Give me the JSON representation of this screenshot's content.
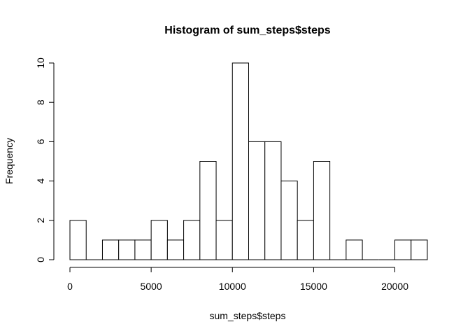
{
  "chart_data": {
    "type": "bar",
    "title": "Histogram of sum_steps$steps",
    "xlabel": "sum_steps$steps",
    "ylabel": "Frequency",
    "xlim": [
      0,
      22000
    ],
    "ylim": [
      0,
      10
    ],
    "bin_width": 1000,
    "bins": [
      {
        "start": 0,
        "end": 1000,
        "count": 2
      },
      {
        "start": 1000,
        "end": 2000,
        "count": 0
      },
      {
        "start": 2000,
        "end": 3000,
        "count": 1
      },
      {
        "start": 3000,
        "end": 4000,
        "count": 1
      },
      {
        "start": 4000,
        "end": 5000,
        "count": 1
      },
      {
        "start": 5000,
        "end": 6000,
        "count": 2
      },
      {
        "start": 6000,
        "end": 7000,
        "count": 1
      },
      {
        "start": 7000,
        "end": 8000,
        "count": 2
      },
      {
        "start": 8000,
        "end": 9000,
        "count": 5
      },
      {
        "start": 9000,
        "end": 10000,
        "count": 2
      },
      {
        "start": 10000,
        "end": 11000,
        "count": 10
      },
      {
        "start": 11000,
        "end": 12000,
        "count": 6
      },
      {
        "start": 12000,
        "end": 13000,
        "count": 6
      },
      {
        "start": 13000,
        "end": 14000,
        "count": 4
      },
      {
        "start": 14000,
        "end": 15000,
        "count": 2
      },
      {
        "start": 15000,
        "end": 16000,
        "count": 5
      },
      {
        "start": 16000,
        "end": 17000,
        "count": 0
      },
      {
        "start": 17000,
        "end": 18000,
        "count": 1
      },
      {
        "start": 18000,
        "end": 19000,
        "count": 0
      },
      {
        "start": 19000,
        "end": 20000,
        "count": 0
      },
      {
        "start": 20000,
        "end": 21000,
        "count": 1
      },
      {
        "start": 21000,
        "end": 22000,
        "count": 1
      }
    ],
    "x_ticks": [
      {
        "value": 0,
        "label": "0"
      },
      {
        "value": 5000,
        "label": "5000"
      },
      {
        "value": 10000,
        "label": "10000"
      },
      {
        "value": 15000,
        "label": "15000"
      },
      {
        "value": 20000,
        "label": "20000"
      }
    ],
    "y_ticks": [
      {
        "value": 0,
        "label": "0"
      },
      {
        "value": 2,
        "label": "2"
      },
      {
        "value": 4,
        "label": "4"
      },
      {
        "value": 6,
        "label": "6"
      },
      {
        "value": 8,
        "label": "8"
      },
      {
        "value": 10,
        "label": "10"
      }
    ],
    "grid": false,
    "legend": "none",
    "colors": {
      "bar_fill": "#ffffff",
      "bar_stroke": "#000000"
    }
  }
}
